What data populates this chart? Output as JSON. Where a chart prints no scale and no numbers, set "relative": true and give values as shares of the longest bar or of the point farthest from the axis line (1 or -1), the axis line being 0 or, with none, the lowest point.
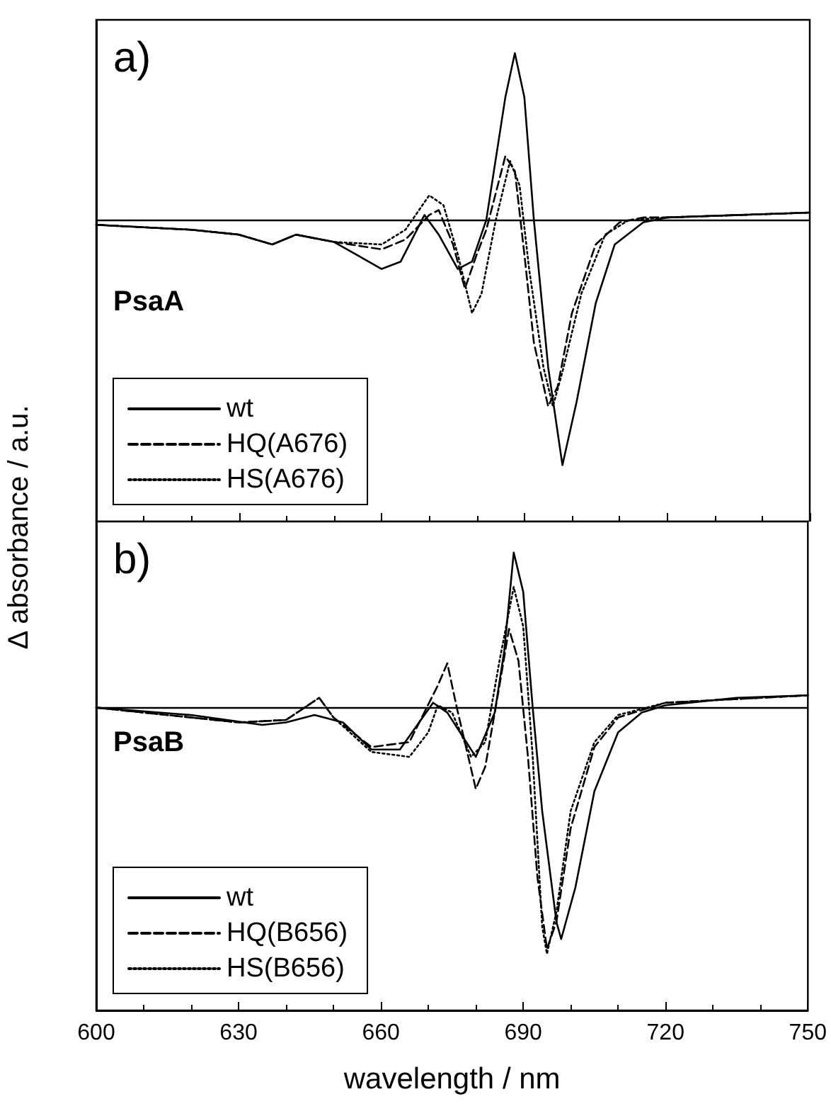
{
  "chart_data": [
    {
      "type": "line",
      "relative": true,
      "ylabel": "Δ absorbance / a.u.",
      "annotations": [
        "a)",
        "PsaA"
      ],
      "xlim": [
        600,
        750
      ],
      "xticks": [
        600,
        630,
        660,
        690,
        720,
        750
      ],
      "tick_labels": false,
      "legend": "bottom left",
      "grid": false,
      "marker": "none",
      "ref_lines": [
        {
          "axis": "y",
          "value": 0,
          "color": "#000000",
          "line_style": "solid"
        }
      ],
      "series": [
        {
          "name": "wt",
          "color": "#000000",
          "line_style": "solid",
          "x": [
            600,
            620,
            630,
            637,
            642,
            650,
            660,
            664,
            669,
            672,
            676,
            679,
            682,
            686,
            688,
            690,
            692,
            695,
            698,
            701,
            705,
            709,
            715,
            720,
            735,
            750
          ],
          "values": [
            -0.02,
            -0.04,
            -0.06,
            -0.1,
            -0.06,
            -0.09,
            -0.2,
            -0.17,
            0.02,
            -0.06,
            -0.2,
            -0.17,
            0,
            0.5,
            0.68,
            0.5,
            0,
            -0.6,
            -1,
            -0.74,
            -0.34,
            -0.1,
            -0.01,
            0.01,
            0.02,
            0.03
          ]
        },
        {
          "name": "HQ(A676)",
          "color": "#000000",
          "line_style": "dashed",
          "x": [
            600,
            620,
            630,
            637,
            642,
            650,
            660,
            665,
            670,
            672,
            675,
            677.5,
            680,
            682,
            686,
            688,
            690,
            692,
            695,
            697,
            700,
            705,
            710,
            715,
            720,
            735,
            750
          ],
          "values": [
            -0.02,
            -0.04,
            -0.06,
            -0.1,
            -0.06,
            -0.09,
            -0.12,
            -0.08,
            0.02,
            0.04,
            -0.1,
            -0.28,
            -0.14,
            -0.04,
            0.26,
            0.2,
            -0.14,
            -0.5,
            -0.76,
            -0.68,
            -0.38,
            -0.1,
            -0.01,
            0.01,
            0.01,
            0.02,
            0.03
          ]
        },
        {
          "name": "HS(A676)",
          "color": "#000000",
          "line_style": "dotted",
          "x": [
            600,
            620,
            630,
            637,
            642,
            650,
            660,
            665,
            670,
            673,
            676,
            679,
            681,
            684,
            687,
            689,
            691,
            694,
            696,
            698,
            702,
            707,
            712,
            720,
            735,
            750
          ],
          "values": [
            -0.02,
            -0.04,
            -0.06,
            -0.1,
            -0.06,
            -0.09,
            -0.1,
            -0.04,
            0.1,
            0.06,
            -0.14,
            -0.38,
            -0.3,
            0,
            0.24,
            0.14,
            -0.2,
            -0.6,
            -0.76,
            -0.62,
            -0.3,
            -0.06,
            0,
            0.01,
            0.02,
            0.03
          ]
        }
      ]
    },
    {
      "type": "line",
      "relative": true,
      "xlabel": "wavelength / nm",
      "annotations": [
        "b)",
        "PsaB"
      ],
      "xlim": [
        600,
        750
      ],
      "xticks": [
        600,
        630,
        660,
        690,
        720,
        750
      ],
      "tick_labels": "x",
      "legend": "bottom left",
      "grid": false,
      "marker": "none",
      "ref_lines": [
        {
          "axis": "y",
          "value": 0,
          "color": "#000000",
          "line_style": "solid"
        }
      ],
      "series": [
        {
          "name": "wt",
          "color": "#000000",
          "line_style": "solid",
          "x": [
            600,
            620,
            635,
            640,
            646,
            652,
            658,
            664,
            671,
            674,
            680,
            684,
            686,
            688,
            690,
            692,
            694,
            697,
            698,
            701,
            705,
            710,
            715,
            720,
            735,
            750
          ],
          "values": [
            0,
            -0.03,
            -0.07,
            -0.06,
            -0.03,
            -0.06,
            -0.17,
            -0.17,
            0.02,
            -0.02,
            -0.2,
            -0.02,
            0.23,
            0.63,
            0.47,
            0,
            -0.42,
            -0.87,
            -0.94,
            -0.73,
            -0.34,
            -0.1,
            -0.02,
            0.01,
            0.04,
            0.05
          ]
        },
        {
          "name": "HQ(B656)",
          "color": "#000000",
          "line_style": "dashed",
          "x": [
            600,
            630,
            640,
            647,
            650,
            658,
            666,
            672,
            674,
            676,
            680,
            682,
            685,
            687,
            689,
            691,
            693,
            695,
            697,
            700,
            705,
            710,
            720,
            750
          ],
          "values": [
            0,
            -0.06,
            -0.05,
            0.04,
            -0.04,
            -0.16,
            -0.14,
            0.09,
            0.18,
            0,
            -0.33,
            -0.24,
            0.09,
            0.32,
            0.19,
            -0.2,
            -0.69,
            -0.98,
            -0.87,
            -0.49,
            -0.16,
            -0.04,
            0.02,
            0.05
          ]
        },
        {
          "name": "HS(B656)",
          "color": "#000000",
          "line_style": "dotted",
          "x": [
            600,
            630,
            640,
            647,
            650,
            658,
            666,
            670,
            672,
            675,
            679,
            682,
            685,
            688,
            690,
            692,
            694,
            695,
            697,
            700,
            705,
            710,
            720,
            750
          ],
          "values": [
            0,
            -0.06,
            -0.05,
            0.04,
            -0.04,
            -0.18,
            -0.2,
            -0.1,
            0.01,
            -0.02,
            -0.2,
            -0.14,
            0.19,
            0.49,
            0.33,
            -0.2,
            -0.89,
            -1,
            -0.83,
            -0.42,
            -0.14,
            -0.03,
            0.02,
            0.05
          ]
        }
      ]
    }
  ]
}
